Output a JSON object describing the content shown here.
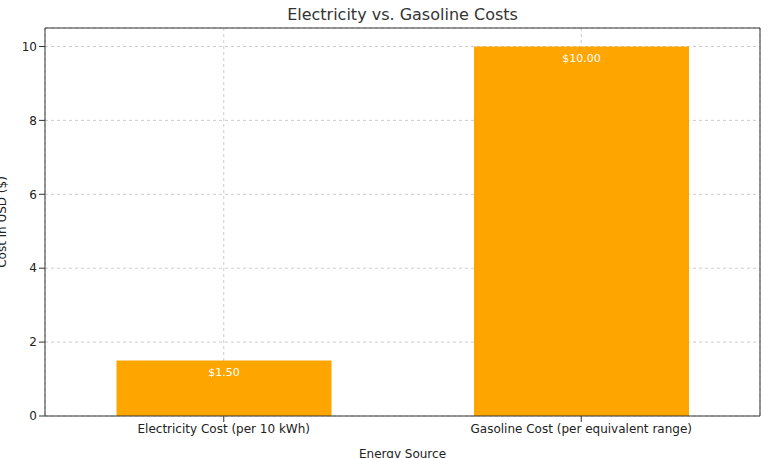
{
  "chart_data": {
    "type": "bar",
    "title": "Electricity vs. Gasoline Costs",
    "x_label": "Energy Source",
    "y_label": "Cost in USD ($)",
    "categories": [
      "Electricity Cost (per 10 kWh)",
      "Gasoline Cost (per equivalent range)"
    ],
    "values": [
      1.5,
      10
    ],
    "value_labels": [
      "$1.50",
      "$10.00"
    ],
    "color": "#ffa500",
    "ylim": [
      0,
      10.5
    ],
    "yticks": [
      0,
      2,
      4,
      6,
      8,
      10
    ],
    "grid": true,
    "data_labels": true
  }
}
